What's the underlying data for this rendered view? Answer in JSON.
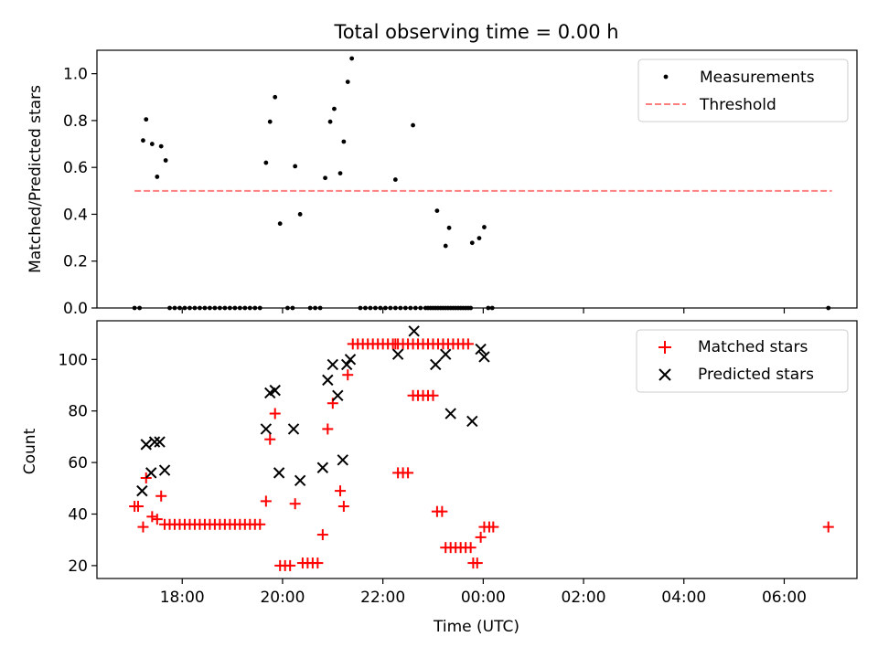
{
  "chart_data": [
    {
      "type": "scatter",
      "title": "Total observing time = 0.00 h",
      "xlabel": "",
      "ylabel": "Matched/Predicted stars",
      "x_unit": "hours since 00:00 UTC (previous day negative)",
      "xlim": [
        -7.7,
        7.45
      ],
      "ylim": [
        0.0,
        1.1
      ],
      "yticks": [
        0.0,
        0.2,
        0.4,
        0.6,
        0.8,
        1.0
      ],
      "ytick_labels": [
        "0.0",
        "0.2",
        "0.4",
        "0.6",
        "0.8",
        "1.0"
      ],
      "legend": [
        "Measurements",
        "Threshold"
      ],
      "legend_position": "top-right",
      "threshold": {
        "name": "Threshold",
        "y": 0.5,
        "x_start": -6.95,
        "x_end": 6.95,
        "color": "#ff7f7f"
      },
      "series": [
        {
          "name": "Measurements",
          "color": "#000000",
          "points": [
            [
              -6.95,
              0.0
            ],
            [
              -6.85,
              0.0
            ],
            [
              -6.78,
              0.715
            ],
            [
              -6.72,
              0.805
            ],
            [
              -6.6,
              0.7
            ],
            [
              -6.5,
              0.56
            ],
            [
              -6.42,
              0.69
            ],
            [
              -6.33,
              0.63
            ],
            [
              -6.25,
              0.0
            ],
            [
              -6.15,
              0.0
            ],
            [
              -6.05,
              0.0
            ],
            [
              -5.95,
              0.0
            ],
            [
              -5.85,
              0.0
            ],
            [
              -5.75,
              0.0
            ],
            [
              -5.65,
              0.0
            ],
            [
              -5.55,
              0.0
            ],
            [
              -5.45,
              0.0
            ],
            [
              -5.35,
              0.0
            ],
            [
              -5.25,
              0.0
            ],
            [
              -5.15,
              0.0
            ],
            [
              -5.05,
              0.0
            ],
            [
              -4.95,
              0.0
            ],
            [
              -4.85,
              0.0
            ],
            [
              -4.75,
              0.0
            ],
            [
              -4.65,
              0.0
            ],
            [
              -4.55,
              0.0
            ],
            [
              -4.45,
              0.0
            ],
            [
              -4.33,
              0.62
            ],
            [
              -4.25,
              0.795
            ],
            [
              -4.15,
              0.9
            ],
            [
              -4.05,
              0.36
            ],
            [
              -3.9,
              0.0
            ],
            [
              -3.8,
              0.0
            ],
            [
              -3.75,
              0.605
            ],
            [
              -3.65,
              0.4
            ],
            [
              -3.45,
              0.0
            ],
            [
              -3.35,
              0.0
            ],
            [
              -3.25,
              0.0
            ],
            [
              -3.15,
              0.555
            ],
            [
              -3.05,
              0.795
            ],
            [
              -2.97,
              0.85
            ],
            [
              -2.85,
              0.575
            ],
            [
              -2.78,
              0.71
            ],
            [
              -2.7,
              0.965
            ],
            [
              -2.62,
              1.065
            ],
            [
              -2.45,
              0.0
            ],
            [
              -2.35,
              0.0
            ],
            [
              -2.25,
              0.0
            ],
            [
              -2.15,
              0.0
            ],
            [
              -2.05,
              0.0
            ],
            [
              -1.95,
              0.0
            ],
            [
              -1.85,
              0.0
            ],
            [
              -1.75,
              0.0
            ],
            [
              -1.65,
              0.0
            ],
            [
              -1.55,
              0.0
            ],
            [
              -1.45,
              0.0
            ],
            [
              -1.35,
              0.0
            ],
            [
              -1.25,
              0.0
            ],
            [
              -1.15,
              0.0
            ],
            [
              -1.05,
              0.0
            ],
            [
              -0.95,
              0.0
            ],
            [
              -0.85,
              0.0
            ],
            [
              -0.75,
              0.0
            ],
            [
              -0.65,
              0.0
            ],
            [
              -0.55,
              0.0
            ],
            [
              -0.45,
              0.0
            ],
            [
              -0.35,
              0.0
            ],
            [
              -0.25,
              0.0
            ],
            [
              -1.75,
              0.548
            ],
            [
              -1.4,
              0.78
            ],
            [
              -1.1,
              0.0
            ],
            [
              -1.0,
              0.0
            ],
            [
              -0.9,
              0.0
            ],
            [
              -0.8,
              0.0
            ],
            [
              -0.7,
              0.0
            ],
            [
              -0.92,
              0.415
            ],
            [
              -0.75,
              0.265
            ],
            [
              -0.68,
              0.342
            ],
            [
              -0.6,
              0.0
            ],
            [
              -0.5,
              0.0
            ],
            [
              -0.4,
              0.0
            ],
            [
              -0.3,
              0.0
            ],
            [
              -0.22,
              0.278
            ],
            [
              -0.08,
              0.298
            ],
            [
              0.02,
              0.345
            ],
            [
              0.1,
              0.0
            ],
            [
              0.18,
              0.0
            ],
            [
              6.88,
              0.0
            ]
          ]
        }
      ]
    },
    {
      "type": "scatter",
      "title": "",
      "xlabel": "Time (UTC)",
      "ylabel": "Count",
      "x_unit": "hours since 00:00 UTC (previous day negative)",
      "xlim": [
        -7.7,
        7.45
      ],
      "ylim": [
        15,
        115
      ],
      "yticks": [
        20,
        40,
        60,
        80,
        100
      ],
      "ytick_labels": [
        "20",
        "40",
        "60",
        "80",
        "100"
      ],
      "xticks": [
        -6,
        -4,
        -2,
        0,
        2,
        4,
        6
      ],
      "xtick_labels": [
        "18:00",
        "20:00",
        "22:00",
        "00:00",
        "02:00",
        "04:00",
        "06:00"
      ],
      "legend": [
        "Matched stars",
        "Predicted stars"
      ],
      "legend_position": "top-right",
      "series": [
        {
          "name": "Matched stars",
          "marker": "+",
          "color": "#ff0000",
          "points": [
            [
              -6.95,
              43
            ],
            [
              -6.88,
              43
            ],
            [
              -6.78,
              35
            ],
            [
              -6.72,
              54
            ],
            [
              -6.6,
              39
            ],
            [
              -6.5,
              38
            ],
            [
              -6.42,
              47
            ],
            [
              -6.35,
              36
            ],
            [
              -6.25,
              36
            ],
            [
              -6.15,
              36
            ],
            [
              -6.05,
              36
            ],
            [
              -5.95,
              36
            ],
            [
              -5.85,
              36
            ],
            [
              -5.75,
              36
            ],
            [
              -5.65,
              36
            ],
            [
              -5.55,
              36
            ],
            [
              -5.45,
              36
            ],
            [
              -5.35,
              36
            ],
            [
              -5.25,
              36
            ],
            [
              -5.15,
              36
            ],
            [
              -5.05,
              36
            ],
            [
              -4.95,
              36
            ],
            [
              -4.85,
              36
            ],
            [
              -4.75,
              36
            ],
            [
              -4.65,
              36
            ],
            [
              -4.55,
              36
            ],
            [
              -4.45,
              36
            ],
            [
              -4.33,
              45
            ],
            [
              -4.25,
              69
            ],
            [
              -4.15,
              79
            ],
            [
              -4.05,
              20
            ],
            [
              -3.95,
              20
            ],
            [
              -3.85,
              20
            ],
            [
              -3.75,
              44
            ],
            [
              -3.6,
              21
            ],
            [
              -3.5,
              21
            ],
            [
              -3.4,
              21
            ],
            [
              -3.3,
              21
            ],
            [
              -3.2,
              32
            ],
            [
              -3.1,
              73
            ],
            [
              -3.0,
              83
            ],
            [
              -2.85,
              49
            ],
            [
              -2.78,
              43
            ],
            [
              -2.7,
              94
            ],
            [
              -2.6,
              106
            ],
            [
              -2.5,
              106
            ],
            [
              -2.4,
              106
            ],
            [
              -2.3,
              106
            ],
            [
              -2.2,
              106
            ],
            [
              -2.1,
              106
            ],
            [
              -2.0,
              106
            ],
            [
              -1.9,
              106
            ],
            [
              -1.8,
              106
            ],
            [
              -1.7,
              106
            ],
            [
              -1.6,
              106
            ],
            [
              -1.5,
              106
            ],
            [
              -1.4,
              106
            ],
            [
              -1.3,
              106
            ],
            [
              -1.2,
              106
            ],
            [
              -1.1,
              106
            ],
            [
              -1.0,
              106
            ],
            [
              -0.9,
              106
            ],
            [
              -0.8,
              106
            ],
            [
              -0.7,
              106
            ],
            [
              -0.6,
              106
            ],
            [
              -0.5,
              106
            ],
            [
              -0.4,
              106
            ],
            [
              -0.3,
              106
            ],
            [
              -1.75,
              106
            ],
            [
              -1.7,
              56
            ],
            [
              -1.6,
              56
            ],
            [
              -1.5,
              56
            ],
            [
              -1.4,
              86
            ],
            [
              -1.3,
              86
            ],
            [
              -1.2,
              86
            ],
            [
              -1.1,
              86
            ],
            [
              -1.0,
              86
            ],
            [
              -0.92,
              41
            ],
            [
              -0.82,
              41
            ],
            [
              -0.75,
              27
            ],
            [
              -0.65,
              27
            ],
            [
              -0.55,
              27
            ],
            [
              -0.45,
              27
            ],
            [
              -0.35,
              27
            ],
            [
              -0.25,
              27
            ],
            [
              -0.2,
              21
            ],
            [
              -0.12,
              21
            ],
            [
              -0.05,
              31
            ],
            [
              0.02,
              35
            ],
            [
              0.12,
              35
            ],
            [
              0.2,
              35
            ],
            [
              6.88,
              35
            ]
          ]
        },
        {
          "name": "Predicted stars",
          "marker": "x",
          "color": "#000000",
          "points": [
            [
              -6.8,
              49
            ],
            [
              -6.72,
              67
            ],
            [
              -6.62,
              56
            ],
            [
              -6.55,
              68
            ],
            [
              -6.45,
              68
            ],
            [
              -6.35,
              57
            ],
            [
              -4.33,
              73
            ],
            [
              -4.25,
              87
            ],
            [
              -4.15,
              88
            ],
            [
              -4.07,
              56
            ],
            [
              -3.78,
              73
            ],
            [
              -3.65,
              53
            ],
            [
              -3.2,
              58
            ],
            [
              -3.1,
              92
            ],
            [
              -3.0,
              98
            ],
            [
              -2.9,
              86
            ],
            [
              -2.8,
              61
            ],
            [
              -2.72,
              98
            ],
            [
              -2.65,
              100
            ],
            [
              -1.7,
              102
            ],
            [
              -1.38,
              111
            ],
            [
              -0.95,
              98
            ],
            [
              -0.75,
              102
            ],
            [
              -0.65,
              79
            ],
            [
              -0.22,
              76
            ],
            [
              -0.05,
              104
            ],
            [
              0.02,
              101
            ]
          ]
        }
      ]
    }
  ]
}
